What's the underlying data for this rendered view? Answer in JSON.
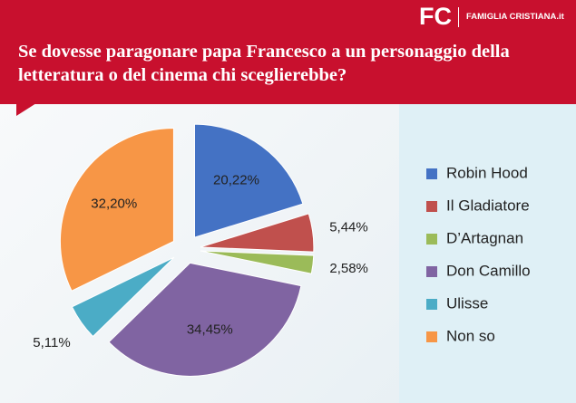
{
  "header": {
    "logo": "FC",
    "brand": "FAMIGLIA CRISTIANA.it"
  },
  "chart_data": {
    "type": "pie",
    "title": "Se dovesse paragonare papa Francesco a un personaggio della letteratura o del cinema chi sceglierebbe?",
    "categories": [
      "Robin Hood",
      "Il Gladiatore",
      "D’Artagnan",
      "Don Camillo",
      "Ulisse",
      "Non so"
    ],
    "values": [
      20.22,
      5.44,
      2.58,
      34.45,
      5.11,
      32.2
    ],
    "value_labels": [
      "20,22%",
      "5,44%",
      "2,58%",
      "34,45%",
      "5,11%",
      "32,20%"
    ],
    "colors": [
      "#4472c4",
      "#c0504d",
      "#9bbb59",
      "#8064a2",
      "#4bacc6",
      "#f79646"
    ],
    "legend": "right"
  }
}
